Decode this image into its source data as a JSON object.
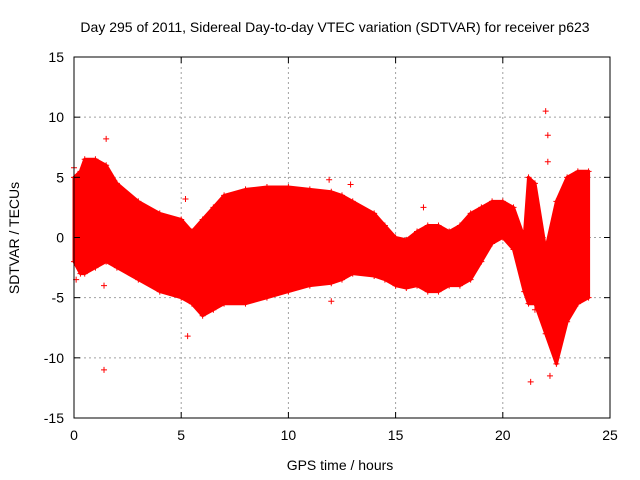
{
  "chart_data": {
    "type": "scatter",
    "title": "Day 295 of 2011, Sidereal Day-to-day VTEC variation (SDTVAR) for receiver p623",
    "xlabel": "GPS time / hours",
    "ylabel": "SDTVAR / TECUs",
    "xlim": [
      0,
      25
    ],
    "ylim": [
      -15,
      15
    ],
    "xticks": [
      0,
      5,
      10,
      15,
      20,
      25
    ],
    "xtick_labels": [
      "0",
      "5",
      "10",
      "15",
      "20",
      "25"
    ],
    "yticks": [
      -15,
      -10,
      -5,
      0,
      5,
      10,
      15
    ],
    "ytick_labels": [
      "-15",
      "-10",
      "-5",
      "0",
      "5",
      "10",
      "15"
    ],
    "grid": true,
    "marker": "+",
    "color": "#ff0000",
    "series": [
      {
        "name": "SDTVAR",
        "envelope": {
          "x": [
            0.0,
            0.3,
            0.5,
            1.0,
            1.5,
            2.0,
            3.0,
            4.0,
            5.0,
            5.5,
            6.0,
            6.5,
            7.0,
            8.0,
            9.0,
            10.0,
            11.0,
            12.0,
            12.5,
            13.0,
            14.0,
            14.5,
            15.0,
            15.5,
            16.0,
            16.5,
            17.0,
            17.5,
            18.0,
            18.5,
            19.0,
            19.5,
            20.0,
            20.5,
            21.0,
            21.2,
            21.5,
            22.0,
            22.5,
            23.0,
            23.5,
            24.0
          ],
          "upper": [
            5.0,
            5.5,
            6.5,
            6.5,
            6.0,
            4.5,
            3.0,
            2.0,
            1.5,
            0.5,
            1.5,
            2.5,
            3.5,
            4.0,
            4.2,
            4.2,
            4.0,
            3.8,
            3.5,
            3.0,
            2.0,
            1.0,
            0.0,
            -0.2,
            0.5,
            1.0,
            1.0,
            0.5,
            1.0,
            2.0,
            2.5,
            3.0,
            3.0,
            2.5,
            0.0,
            5.0,
            4.5,
            -1.0,
            3.0,
            5.0,
            5.5,
            5.5
          ],
          "lower": [
            -2.0,
            -3.0,
            -3.0,
            -2.5,
            -2.0,
            -2.5,
            -3.5,
            -4.5,
            -5.0,
            -5.5,
            -6.5,
            -6.0,
            -5.5,
            -5.5,
            -5.0,
            -4.5,
            -4.0,
            -3.8,
            -3.5,
            -3.0,
            -3.2,
            -3.5,
            -4.0,
            -4.2,
            -4.0,
            -4.5,
            -4.5,
            -4.0,
            -4.0,
            -3.5,
            -2.0,
            -0.5,
            0.0,
            -1.0,
            -4.5,
            -5.5,
            -5.5,
            -8.0,
            -10.5,
            -7.0,
            -5.5,
            -5.0
          ]
        },
        "outliers": [
          {
            "x": 1.4,
            "y": -11.0
          },
          {
            "x": 1.4,
            "y": -4.0
          },
          {
            "x": 1.5,
            "y": 8.2
          },
          {
            "x": 5.3,
            "y": -8.2
          },
          {
            "x": 5.2,
            "y": 3.2
          },
          {
            "x": 11.9,
            "y": 4.8
          },
          {
            "x": 12.0,
            "y": -5.3
          },
          {
            "x": 12.9,
            "y": 4.4
          },
          {
            "x": 21.3,
            "y": -12.0
          },
          {
            "x": 21.5,
            "y": -6.0
          },
          {
            "x": 22.0,
            "y": 10.5
          },
          {
            "x": 22.1,
            "y": 8.5
          },
          {
            "x": 22.1,
            "y": 6.3
          },
          {
            "x": 22.2,
            "y": -11.5
          },
          {
            "x": 16.3,
            "y": 2.5
          },
          {
            "x": 0.0,
            "y": 5.8
          },
          {
            "x": 0.1,
            "y": -3.5
          }
        ]
      }
    ]
  }
}
